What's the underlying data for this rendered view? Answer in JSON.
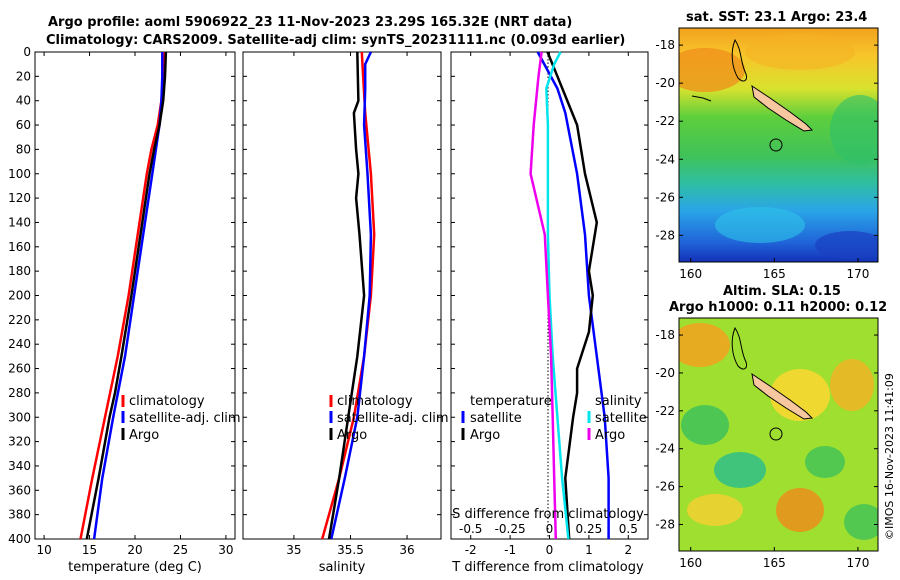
{
  "title_line1": "Argo profile: aoml 5906922_23 11-Nov-2023 23.29S 165.32E (NRT data)",
  "title_line2": "Climatology: CARS2009. Satellite-adj clim: synTS_20231111.nc (0.093d earlier)",
  "sst_title": "sat. SST: 23.1 Argo: 23.4",
  "sla_title1": "Altim. SLA: 0.15",
  "sla_title2": "Argo h1000: 0.11 h2000: 0.12",
  "copyright": "©IMOS 16-Nov-2023 11:41:09",
  "colors": {
    "climatology": "#ff0000",
    "satellite": "#0000ff",
    "argo": "#000000",
    "sal_satellite": "#00e5ee",
    "sal_argo": "#ee00ee"
  },
  "chart_data": [
    {
      "type": "line",
      "name": "temperature",
      "xlabel": "temperature (deg C)",
      "xlim": [
        9,
        31
      ],
      "ylim": [
        0,
        400
      ],
      "xticks": [
        "10",
        "15",
        "20",
        "25",
        "30"
      ],
      "xtick_values": [
        10,
        15,
        20,
        25,
        30
      ],
      "yticks": [
        "0",
        "20",
        "40",
        "60",
        "80",
        "100",
        "120",
        "140",
        "160",
        "180",
        "200",
        "220",
        "240",
        "260",
        "280",
        "300",
        "320",
        "340",
        "360",
        "380",
        "400"
      ],
      "legend": [
        "climatology",
        "satellite-adj. clim",
        "Argo"
      ],
      "series": [
        {
          "name": "climatology",
          "depth": [
            0,
            20,
            40,
            60,
            80,
            100,
            150,
            200,
            250,
            300,
            350,
            400
          ],
          "values": [
            23.2,
            23.1,
            22.9,
            22.5,
            21.8,
            21.3,
            20.3,
            19.3,
            18.1,
            16.7,
            15.3,
            14.0
          ]
        },
        {
          "name": "satellite-adj. clim",
          "depth": [
            0,
            20,
            40,
            60,
            80,
            100,
            150,
            200,
            250,
            300,
            350,
            400
          ],
          "values": [
            23.0,
            23.0,
            22.9,
            22.7,
            22.3,
            21.9,
            20.9,
            19.9,
            18.9,
            17.6,
            16.4,
            15.5
          ]
        },
        {
          "name": "Argo",
          "depth": [
            0,
            20,
            40,
            60,
            80,
            100,
            150,
            200,
            250,
            280,
            300,
            350,
            400
          ],
          "values": [
            23.4,
            23.3,
            23.1,
            22.7,
            22.1,
            21.6,
            20.6,
            19.6,
            18.5,
            17.8,
            17.2,
            16.0,
            14.7
          ]
        }
      ]
    },
    {
      "type": "line",
      "name": "salinity",
      "xlabel": "salinity",
      "xlim": [
        34.55,
        36.3
      ],
      "ylim": [
        0,
        400
      ],
      "xticks": [
        "35",
        "35.5",
        "36"
      ],
      "xtick_values": [
        35,
        35.5,
        36
      ],
      "legend": [
        "climatology",
        "satellite-adj. clim",
        "Argo"
      ],
      "series": [
        {
          "name": "climatology",
          "depth": [
            0,
            50,
            100,
            150,
            200,
            250,
            300,
            350,
            400
          ],
          "values": [
            35.6,
            35.63,
            35.68,
            35.71,
            35.68,
            35.62,
            35.53,
            35.4,
            35.25
          ]
        },
        {
          "name": "satellite-adj. clim",
          "depth": [
            0,
            10,
            30,
            60,
            100,
            150,
            200,
            250,
            300,
            350,
            400
          ],
          "values": [
            35.68,
            35.63,
            35.63,
            35.62,
            35.65,
            35.68,
            35.67,
            35.62,
            35.56,
            35.45,
            35.33
          ]
        },
        {
          "name": "Argo",
          "depth": [
            0,
            40,
            50,
            80,
            100,
            120,
            150,
            200,
            250,
            300,
            350,
            400
          ],
          "values": [
            35.56,
            35.57,
            35.53,
            35.55,
            35.57,
            35.55,
            35.58,
            35.62,
            35.56,
            35.48,
            35.4,
            35.31
          ]
        }
      ]
    },
    {
      "type": "line",
      "name": "difference",
      "xlabel": "T difference from climatology",
      "xlim": [
        -2.5,
        2.5
      ],
      "ylim": [
        0,
        400
      ],
      "xticks": [
        "-2",
        "-1",
        "0",
        "1",
        "2"
      ],
      "xtick_values": [
        -2,
        -1,
        0,
        1,
        2
      ],
      "xlabel2": "S difference from climatology",
      "xticks2": [
        "-0.5",
        "-0.25",
        "0",
        "0.25",
        "0.5"
      ],
      "xtick2_values": [
        -0.5,
        -0.25,
        0,
        0.25,
        0.5
      ],
      "legend_left_title": "temperature",
      "legend_left": [
        "satellite",
        "Argo"
      ],
      "legend_right_title": "salinity",
      "legend_right": [
        "satellite",
        "Argo"
      ],
      "series": [
        {
          "name": "temperature satellite",
          "depth": [
            0,
            30,
            50,
            100,
            150,
            200,
            250,
            300,
            350,
            400
          ],
          "values": [
            -0.3,
            0.2,
            0.4,
            0.7,
            0.9,
            1.0,
            1.2,
            1.4,
            1.5,
            1.5
          ]
        },
        {
          "name": "temperature Argo",
          "depth": [
            0,
            20,
            60,
            100,
            140,
            180,
            200,
            230,
            260,
            280,
            300,
            350,
            400
          ],
          "values": [
            -0.05,
            0.2,
            0.7,
            0.9,
            1.2,
            1.0,
            1.1,
            1.0,
            0.7,
            0.7,
            0.6,
            0.4,
            0.5
          ]
        },
        {
          "name": "salinity satellite",
          "depth": [
            0,
            10,
            30,
            60,
            100,
            150,
            200,
            250,
            300,
            350,
            400
          ],
          "values": [
            0.07,
            0.03,
            -0.02,
            -0.01,
            -0.01,
            -0.01,
            0.0,
            0.02,
            0.05,
            0.08,
            0.12
          ]
        },
        {
          "name": "salinity Argo",
          "depth": [
            0,
            20,
            60,
            100,
            150,
            200,
            250,
            300,
            350,
            400
          ],
          "values": [
            -0.05,
            -0.07,
            -0.1,
            -0.12,
            -0.03,
            -0.01,
            0.01,
            0.02,
            0.03,
            0.04
          ]
        }
      ]
    }
  ],
  "maps": {
    "lon_ticks": [
      "160",
      "165",
      "170"
    ],
    "lon_values": [
      160,
      165,
      170
    ],
    "lat_ticks": [
      "-18",
      "-20",
      "-22",
      "-24",
      "-26",
      "-28"
    ],
    "lat_values": [
      -18,
      -20,
      -22,
      -24,
      -26,
      -28
    ],
    "lon_range": [
      159.3,
      171.2
    ],
    "lat_range": [
      -29.4,
      -17.1
    ],
    "profile_lon": 165.32,
    "profile_lat": -23.29
  }
}
